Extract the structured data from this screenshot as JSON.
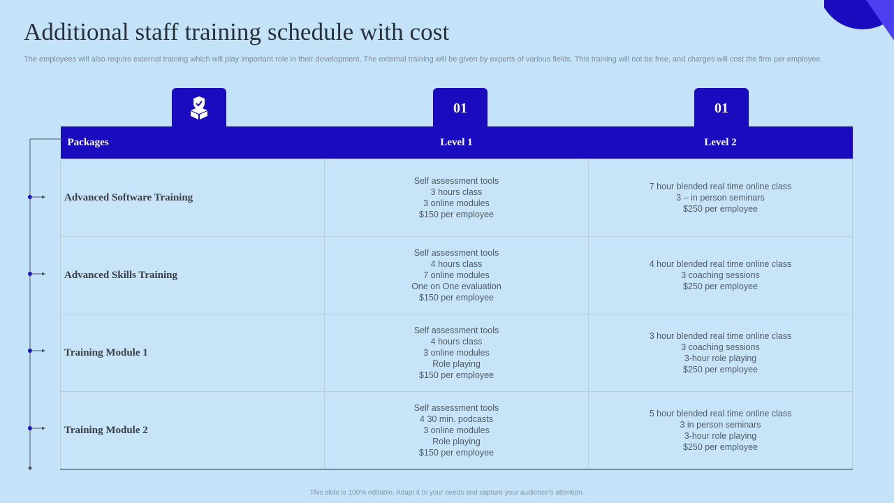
{
  "page": {
    "title": "Additional staff training schedule with cost",
    "subtitle": "The employees will also require external training which will play important role in their development. The external training will be given by experts of various fields. This training will not be free, and charges will cost the firm per employee.",
    "footer": "This slide is 100% editable.  Adapt it to your needs and capture your audience's attention."
  },
  "tabs": [
    {
      "icon": "package-shield-icon"
    },
    {
      "label": "01"
    },
    {
      "label": "01"
    }
  ],
  "table": {
    "headers": [
      "Packages",
      "Level 1",
      "Level 2"
    ],
    "rows": [
      {
        "package": "Advanced Software Training",
        "level1": [
          "Self assessment tools",
          "3 hours class",
          "3 online modules",
          "$150 per employee"
        ],
        "level2": [
          "7 hour blended real time online class",
          "3 – in person seminars",
          "$250 per employee"
        ]
      },
      {
        "package": "Advanced Skills Training",
        "level1": [
          "Self assessment tools",
          "4 hours class",
          "7 online modules",
          "One on One evaluation",
          "$150 per employee"
        ],
        "level2": [
          "4 hour blended real time online class",
          "3 coaching sessions",
          "$250 per employee"
        ]
      },
      {
        "package": "Training Module 1",
        "level1": [
          "Self assessment tools",
          "4 hours class",
          "3 online modules",
          "Role playing",
          "$150 per employee"
        ],
        "level2": [
          "3 hour blended real time online class",
          "3 coaching sessions",
          "3-hour role playing",
          "$250 per employee"
        ]
      },
      {
        "package": "Training Module 2",
        "level1": [
          "Self assessment tools",
          "4  30 min. podcasts",
          "3 online modules",
          "Role playing",
          "$150 per employee"
        ],
        "level2": [
          "5 hour blended real time online class",
          "3 in person seminars",
          "3-hour role playing",
          "$250 per employee"
        ]
      }
    ]
  },
  "colors": {
    "background": "#c5e3f8",
    "accent": "#1a0bbf",
    "deco_secondary": "#4b3ff0"
  }
}
